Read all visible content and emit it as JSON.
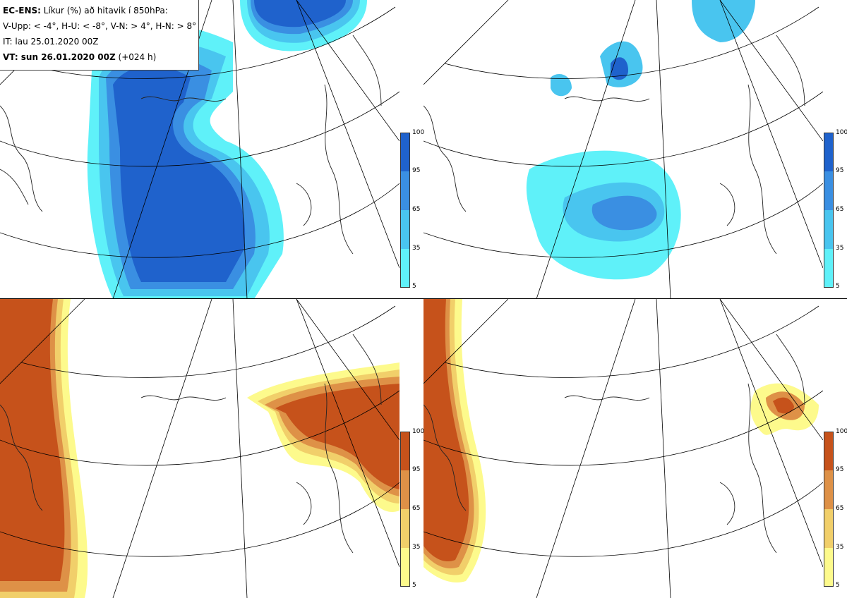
{
  "info": {
    "line1_bold": "EC-ENS:",
    "line1_rest": " Líkur (%) að hitavik í 850hPa:",
    "line2": "V-Upp: < -4°, H-U: < -8°, V-N: > 4°, H-N: > 8°",
    "line3": "IT: lau 25.01.2020 00Z",
    "line4_bold": "VT: sun 26.01.2020 00Z",
    "line4_rest": " (+024 h)"
  },
  "colorbar_ticks": [
    "100",
    "95",
    "65",
    "35",
    "5"
  ],
  "colors": {
    "blue_scale": [
      "#5ff1f9",
      "#49c5ef",
      "#3a8fe2",
      "#1f62cc"
    ],
    "orange_scale": [
      "#fdfa8c",
      "#f1cf6a",
      "#de9147",
      "#c6521b"
    ],
    "coast": "#222222",
    "grid": "#000000"
  },
  "panels": [
    {
      "id": "V-Upp",
      "scale": "blue"
    },
    {
      "id": "H-U",
      "scale": "blue"
    },
    {
      "id": "V-N",
      "scale": "orange"
    },
    {
      "id": "H-N",
      "scale": "orange"
    }
  ]
}
